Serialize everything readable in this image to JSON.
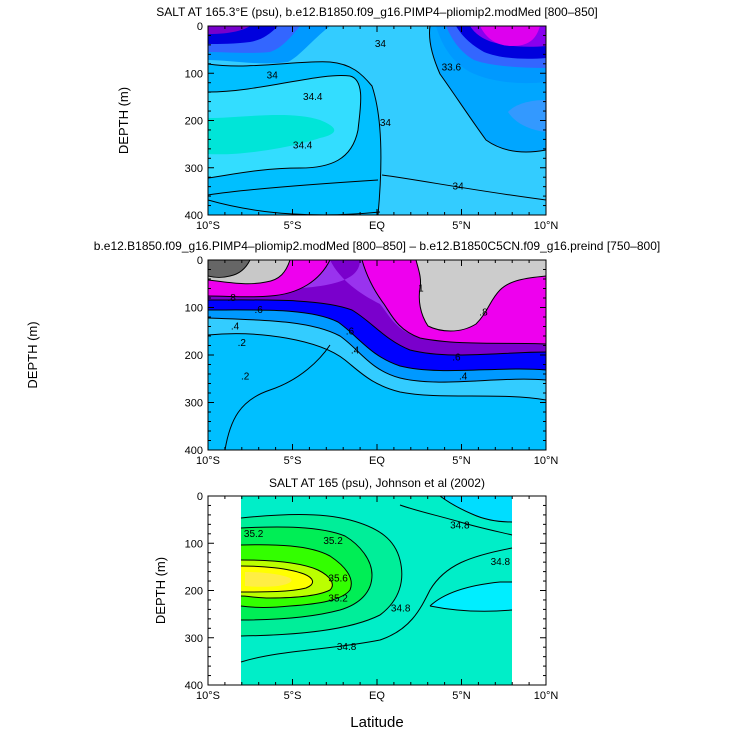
{
  "figure": {
    "xlabel": "Latitude"
  },
  "chart_data": [
    {
      "type": "heatmap",
      "title": "SALT AT 165.3°E (psu), b.e12.B1850.f09_g16.PIMP4–pliomip2.modMed [800–850]",
      "xlabel": "",
      "ylabel": "DEPTH (m)",
      "xlim": [
        -10,
        10
      ],
      "ylim": [
        400,
        0
      ],
      "x_ticks": [
        "10°S",
        "5°S",
        "EQ",
        "5°N",
        "10°N"
      ],
      "y_ticks": [
        "0",
        "100",
        "200",
        "300",
        "400"
      ],
      "show_x_tick_labels": true,
      "contour_labels": [
        {
          "text": "34",
          "x": -6.2,
          "y": 105
        },
        {
          "text": "34.4",
          "x": -3.8,
          "y": 150
        },
        {
          "text": "34.4",
          "x": -4.4,
          "y": 253
        },
        {
          "text": "34",
          "x": 0.2,
          "y": 38
        },
        {
          "text": "34",
          "x": 0.5,
          "y": 205
        },
        {
          "text": "33.6",
          "x": 4.4,
          "y": 88
        },
        {
          "text": "34",
          "x": 4.8,
          "y": 340
        }
      ]
    },
    {
      "type": "heatmap",
      "title": "b.e12.B1850.f09_g16.PIMP4–pliomip2.modMed [800–850] – b.e12.B1850C5CN.f09_g16.preind [750–800]",
      "xlabel": "",
      "ylabel": "DEPTH (m)",
      "xlim": [
        -10,
        10
      ],
      "ylim": [
        400,
        0
      ],
      "x_ticks": [
        "10°S",
        "5°S",
        "EQ",
        "5°N",
        "10°N"
      ],
      "y_ticks": [
        "0",
        "100",
        "200",
        "300",
        "400"
      ],
      "show_x_tick_labels": true,
      "contour_labels": [
        {
          "text": ".8",
          "x": -8.6,
          "y": 80
        },
        {
          "text": ".6",
          "x": -7.0,
          "y": 105
        },
        {
          "text": ".4",
          "x": -8.4,
          "y": 140
        },
        {
          "text": ".2",
          "x": -8.0,
          "y": 175
        },
        {
          "text": ".2",
          "x": -7.8,
          "y": 245
        },
        {
          "text": ".6",
          "x": -1.6,
          "y": 150
        },
        {
          "text": ".4",
          "x": -1.3,
          "y": 190
        },
        {
          "text": "1",
          "x": 2.6,
          "y": 60
        },
        {
          "text": ".8",
          "x": 6.3,
          "y": 110
        },
        {
          "text": ".6",
          "x": 4.7,
          "y": 205
        },
        {
          "text": ".4",
          "x": 5.1,
          "y": 245
        }
      ]
    },
    {
      "type": "heatmap",
      "title": "SALT AT 165 (psu), Johnson et al (2002)",
      "xlabel": "",
      "ylabel": "DEPTH (m)",
      "xlim": [
        -10,
        10
      ],
      "ylim": [
        400,
        0
      ],
      "x_ticks": [
        "10°S",
        "5°S",
        "EQ",
        "5°N",
        "10°N"
      ],
      "y_ticks": [
        "0",
        "100",
        "200",
        "300",
        "400"
      ],
      "show_x_tick_labels": true,
      "contour_labels": [
        {
          "text": "35.2",
          "x": -7.3,
          "y": 80
        },
        {
          "text": "35.2",
          "x": -2.6,
          "y": 95
        },
        {
          "text": "35.6",
          "x": -2.3,
          "y": 175
        },
        {
          "text": "35.2",
          "x": -2.3,
          "y": 217
        },
        {
          "text": "34.8",
          "x": -1.8,
          "y": 320
        },
        {
          "text": "34.8",
          "x": 1.4,
          "y": 238
        },
        {
          "text": "34.8",
          "x": 4.9,
          "y": 62
        },
        {
          "text": "34.8",
          "x": 7.3,
          "y": 140
        }
      ]
    }
  ]
}
